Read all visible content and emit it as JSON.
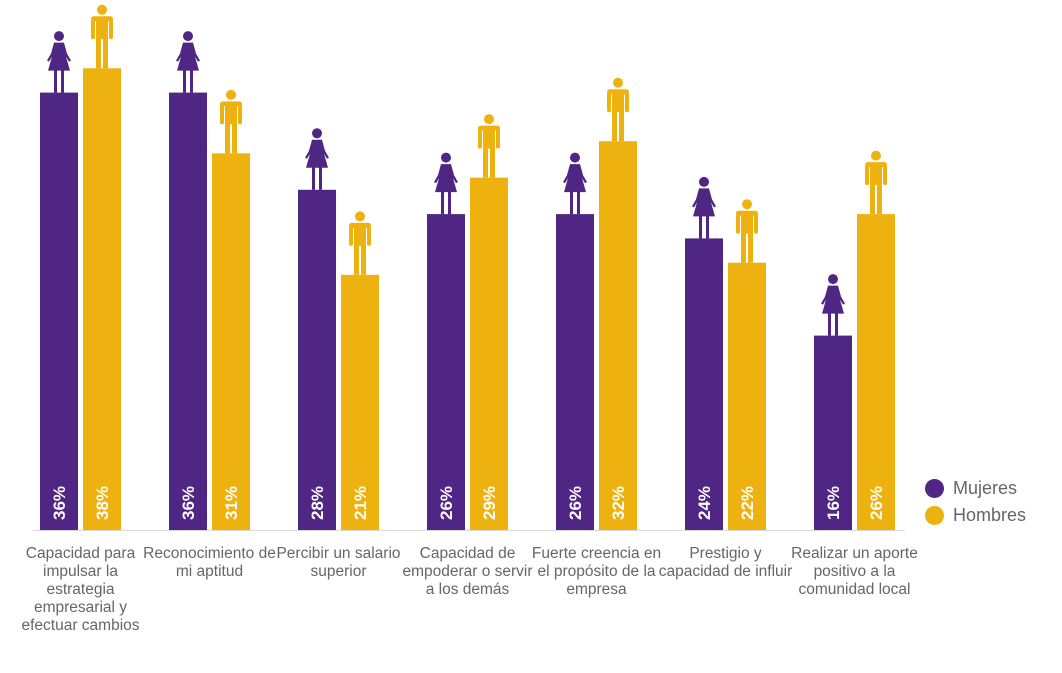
{
  "chart_data": {
    "type": "bar",
    "categories": [
      "Capacidad para impulsar la estrategia empresarial y efectuar cambios",
      "Reconocimiento de mi aptitud",
      "Percibir un salario superior",
      "Capacidad de empoderar o servir a los demás",
      "Fuerte creencia en el propósito de la empresa",
      "Prestigio y capacidad de influir",
      "Realizar un aporte positivo a la comunidad local"
    ],
    "series": [
      {
        "name": "Mujeres",
        "values": [
          36,
          36,
          28,
          26,
          26,
          24,
          16
        ],
        "labels": [
          "36%",
          "36%",
          "28%",
          "26%",
          "26%",
          "24%",
          "16%"
        ],
        "color": "#4F2683",
        "icon": "woman-icon"
      },
      {
        "name": "Hombres",
        "values": [
          38,
          31,
          21,
          29,
          32,
          22,
          26
        ],
        "labels": [
          "38%",
          "31%",
          "21%",
          "29%",
          "32%",
          "22%",
          "26%"
        ],
        "color": "#EDB210",
        "icon": "man-icon"
      }
    ],
    "ylim": [
      0,
      40
    ],
    "grid": false,
    "legend_position": "bottom-right"
  }
}
